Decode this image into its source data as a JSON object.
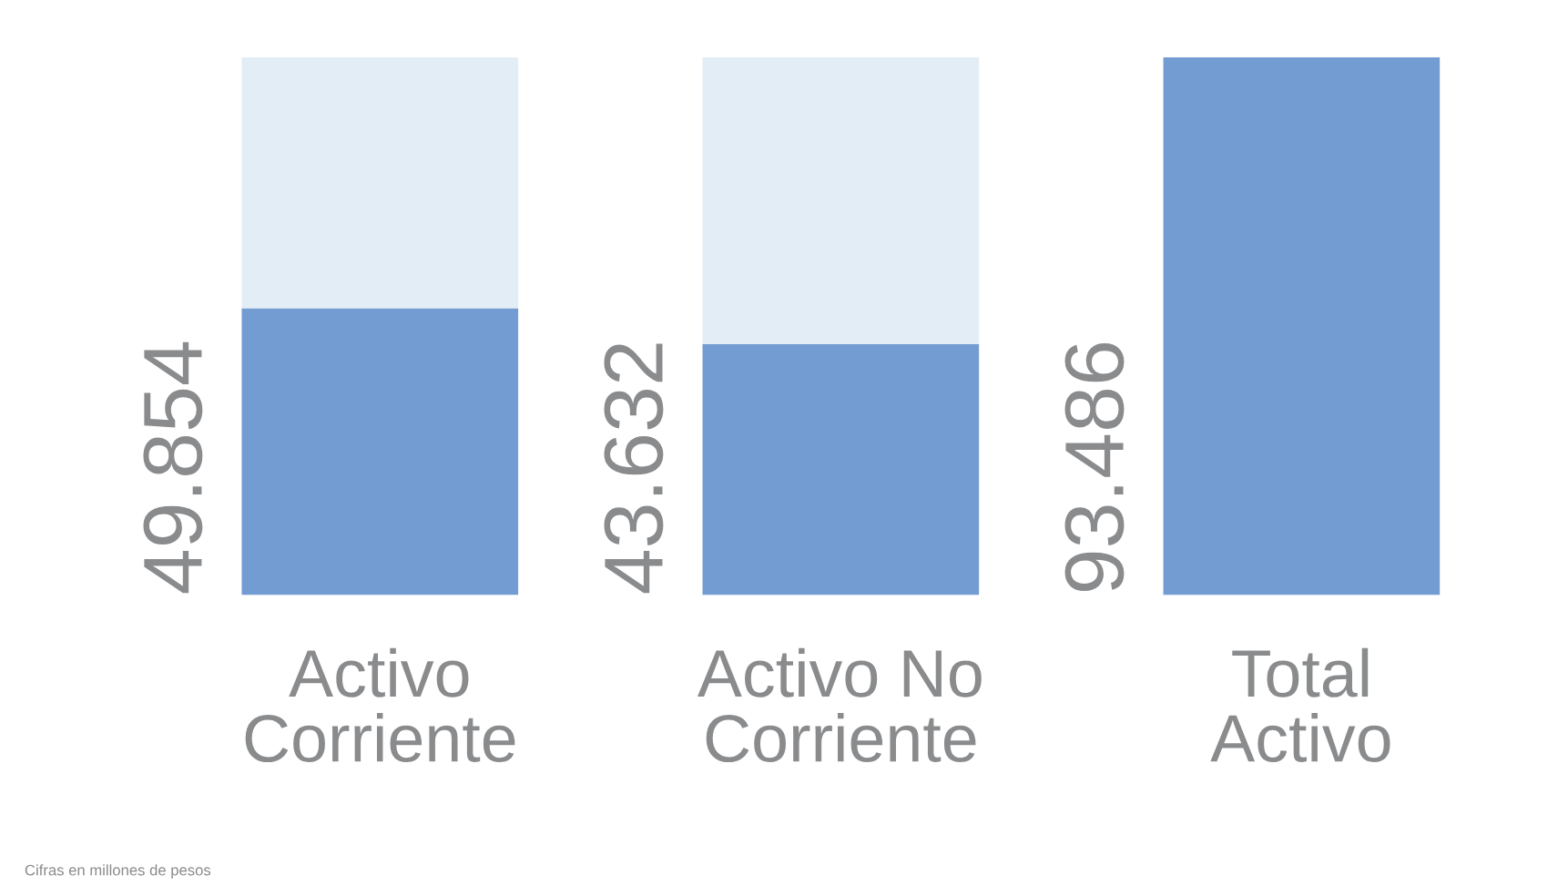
{
  "chart_data": {
    "type": "bar",
    "stacked": true,
    "categories": [
      "Activo\nCorriente",
      "Activo No\nCorriente",
      "Total\nActivo"
    ],
    "series": [
      {
        "color": "#739cd3",
        "values": [
          49854,
          43632,
          93486
        ],
        "value_labels": [
          "49.854",
          "43.632",
          "93.486"
        ]
      },
      {
        "color": "#e3edf6",
        "values": [
          43632,
          49854,
          null
        ]
      }
    ],
    "tick_labels": "x",
    "annotations": [
      "Cifras en millones de pesos"
    ]
  }
}
